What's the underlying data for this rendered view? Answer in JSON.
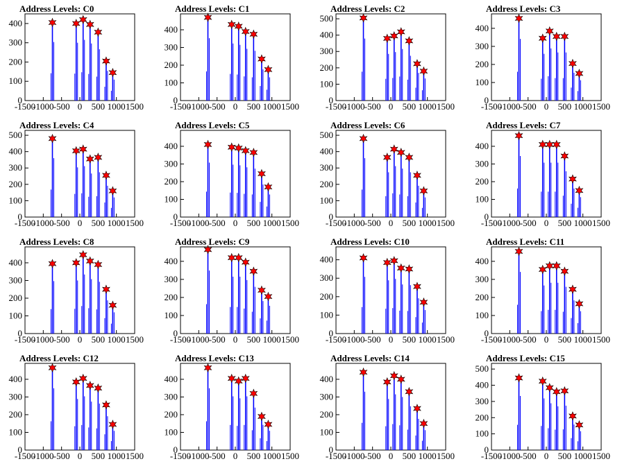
{
  "chart_data": [
    {
      "type": "bar",
      "title": "Address Levels: C0",
      "xlim": [
        -1500,
        1500
      ],
      "yticks": [
        0,
        100,
        200,
        300,
        400
      ],
      "xticks": [
        -1500,
        -1000,
        -500,
        0,
        500,
        1000,
        1500
      ],
      "ylim": [
        0,
        450
      ],
      "peaks": [
        {
          "x": -750,
          "y": 405
        },
        {
          "x": -100,
          "y": 400
        },
        {
          "x": 90,
          "y": 420
        },
        {
          "x": 280,
          "y": 395
        },
        {
          "x": 500,
          "y": 355
        },
        {
          "x": 720,
          "y": 205
        },
        {
          "x": 900,
          "y": 145
        }
      ]
    },
    {
      "type": "bar",
      "title": "Address Levels: C1",
      "xlim": [
        -1500,
        1500
      ],
      "yticks": [
        0,
        100,
        200,
        300,
        400
      ],
      "xticks": [
        -1500,
        -1000,
        -500,
        0,
        500,
        1000,
        1500
      ],
      "ylim": [
        0,
        490
      ],
      "peaks": [
        {
          "x": -750,
          "y": 470
        },
        {
          "x": -100,
          "y": 430
        },
        {
          "x": 90,
          "y": 420
        },
        {
          "x": 280,
          "y": 390
        },
        {
          "x": 500,
          "y": 375
        },
        {
          "x": 720,
          "y": 235
        },
        {
          "x": 900,
          "y": 175
        }
      ]
    },
    {
      "type": "bar",
      "title": "Address Levels: C2",
      "xlim": [
        -1500,
        1500
      ],
      "yticks": [
        0,
        100,
        200,
        300,
        400,
        500
      ],
      "xticks": [
        -1500,
        -1000,
        -500,
        0,
        500,
        1000,
        1500
      ],
      "ylim": [
        0,
        530
      ],
      "peaks": [
        {
          "x": -750,
          "y": 505
        },
        {
          "x": -100,
          "y": 380
        },
        {
          "x": 90,
          "y": 395
        },
        {
          "x": 280,
          "y": 420
        },
        {
          "x": 500,
          "y": 365
        },
        {
          "x": 720,
          "y": 225
        },
        {
          "x": 900,
          "y": 180
        }
      ]
    },
    {
      "type": "bar",
      "title": "Address Levels: C3",
      "xlim": [
        -1500,
        1500
      ],
      "yticks": [
        0,
        100,
        200,
        300,
        400
      ],
      "xticks": [
        -1500,
        -1000,
        -500,
        0,
        500,
        1000,
        1500
      ],
      "ylim": [
        0,
        480
      ],
      "peaks": [
        {
          "x": -750,
          "y": 455
        },
        {
          "x": -100,
          "y": 345
        },
        {
          "x": 90,
          "y": 385
        },
        {
          "x": 280,
          "y": 355
        },
        {
          "x": 500,
          "y": 355
        },
        {
          "x": 720,
          "y": 205
        },
        {
          "x": 900,
          "y": 150
        }
      ]
    },
    {
      "type": "bar",
      "title": "Address Levels: C4",
      "xlim": [
        -1500,
        1500
      ],
      "yticks": [
        0,
        100,
        200,
        300,
        400,
        500
      ],
      "xticks": [
        -1500,
        -1000,
        -500,
        0,
        500,
        1000,
        1500
      ],
      "ylim": [
        0,
        530
      ],
      "peaks": [
        {
          "x": -750,
          "y": 480
        },
        {
          "x": -100,
          "y": 405
        },
        {
          "x": 90,
          "y": 415
        },
        {
          "x": 280,
          "y": 355
        },
        {
          "x": 500,
          "y": 365
        },
        {
          "x": 720,
          "y": 255
        },
        {
          "x": 900,
          "y": 160
        }
      ]
    },
    {
      "type": "bar",
      "title": "Address Levels: C5",
      "xlim": [
        -1500,
        1500
      ],
      "yticks": [
        0,
        100,
        200,
        300,
        400
      ],
      "xticks": [
        -1500,
        -1000,
        -500,
        0,
        500,
        1000,
        1500
      ],
      "ylim": [
        0,
        490
      ],
      "peaks": [
        {
          "x": -750,
          "y": 410
        },
        {
          "x": -100,
          "y": 395
        },
        {
          "x": 90,
          "y": 390
        },
        {
          "x": 280,
          "y": 375
        },
        {
          "x": 500,
          "y": 365
        },
        {
          "x": 720,
          "y": 245
        },
        {
          "x": 900,
          "y": 170
        }
      ]
    },
    {
      "type": "bar",
      "title": "Address Levels: C6",
      "xlim": [
        -1500,
        1500
      ],
      "yticks": [
        0,
        100,
        200,
        300,
        400,
        500
      ],
      "xticks": [
        -1500,
        -1000,
        -500,
        0,
        500,
        1000,
        1500
      ],
      "ylim": [
        0,
        530
      ],
      "peaks": [
        {
          "x": -750,
          "y": 480
        },
        {
          "x": -100,
          "y": 365
        },
        {
          "x": 90,
          "y": 415
        },
        {
          "x": 280,
          "y": 395
        },
        {
          "x": 500,
          "y": 365
        },
        {
          "x": 720,
          "y": 255
        },
        {
          "x": 900,
          "y": 160
        }
      ]
    },
    {
      "type": "bar",
      "title": "Address Levels: C7",
      "xlim": [
        -1500,
        1500
      ],
      "yticks": [
        0,
        100,
        200,
        300,
        400
      ],
      "xticks": [
        -1500,
        -1000,
        -500,
        0,
        500,
        1000,
        1500
      ],
      "ylim": [
        0,
        490
      ],
      "peaks": [
        {
          "x": -750,
          "y": 460
        },
        {
          "x": -100,
          "y": 410
        },
        {
          "x": 90,
          "y": 410
        },
        {
          "x": 280,
          "y": 410
        },
        {
          "x": 500,
          "y": 345
        },
        {
          "x": 720,
          "y": 215
        },
        {
          "x": 900,
          "y": 150
        }
      ]
    },
    {
      "type": "bar",
      "title": "Address Levels: C8",
      "xlim": [
        -1500,
        1500
      ],
      "yticks": [
        0,
        100,
        200,
        300,
        400
      ],
      "xticks": [
        -1500,
        -1000,
        -500,
        0,
        500,
        1000,
        1500
      ],
      "ylim": [
        0,
        490
      ],
      "peaks": [
        {
          "x": -750,
          "y": 395
        },
        {
          "x": -100,
          "y": 400
        },
        {
          "x": 90,
          "y": 445
        },
        {
          "x": 280,
          "y": 410
        },
        {
          "x": 500,
          "y": 390
        },
        {
          "x": 720,
          "y": 250
        },
        {
          "x": 900,
          "y": 160
        }
      ]
    },
    {
      "type": "bar",
      "title": "Address Levels: C9",
      "xlim": [
        -1500,
        1500
      ],
      "yticks": [
        0,
        100,
        200,
        300,
        400
      ],
      "xticks": [
        -1500,
        -1000,
        -500,
        0,
        500,
        1000,
        1500
      ],
      "ylim": [
        0,
        480
      ],
      "peaks": [
        {
          "x": -750,
          "y": 465
        },
        {
          "x": -100,
          "y": 420
        },
        {
          "x": 90,
          "y": 420
        },
        {
          "x": 280,
          "y": 395
        },
        {
          "x": 500,
          "y": 345
        },
        {
          "x": 720,
          "y": 240
        },
        {
          "x": 900,
          "y": 205
        }
      ]
    },
    {
      "type": "bar",
      "title": "Address Levels: C10",
      "xlim": [
        -1500,
        1500
      ],
      "yticks": [
        0,
        100,
        200,
        300,
        400
      ],
      "xticks": [
        -1500,
        -1000,
        -500,
        0,
        500,
        1000,
        1500
      ],
      "ylim": [
        0,
        470
      ],
      "peaks": [
        {
          "x": -750,
          "y": 410
        },
        {
          "x": -100,
          "y": 385
        },
        {
          "x": 90,
          "y": 395
        },
        {
          "x": 280,
          "y": 355
        },
        {
          "x": 500,
          "y": 350
        },
        {
          "x": 720,
          "y": 255
        },
        {
          "x": 900,
          "y": 170
        }
      ]
    },
    {
      "type": "bar",
      "title": "Address Levels: C11",
      "xlim": [
        -1500,
        1500
      ],
      "yticks": [
        0,
        100,
        200,
        300,
        400
      ],
      "xticks": [
        -1500,
        -1000,
        -500,
        0,
        500,
        1000,
        1500
      ],
      "ylim": [
        0,
        480
      ],
      "peaks": [
        {
          "x": -750,
          "y": 455
        },
        {
          "x": -100,
          "y": 355
        },
        {
          "x": 90,
          "y": 375
        },
        {
          "x": 280,
          "y": 375
        },
        {
          "x": 500,
          "y": 345
        },
        {
          "x": 720,
          "y": 245
        },
        {
          "x": 900,
          "y": 165
        }
      ]
    },
    {
      "type": "bar",
      "title": "Address Levels: C12",
      "xlim": [
        -1500,
        1500
      ],
      "yticks": [
        0,
        100,
        200,
        300,
        400
      ],
      "xticks": [
        -1500,
        -1000,
        -500,
        0,
        500,
        1000,
        1500
      ],
      "ylim": [
        0,
        490
      ],
      "peaks": [
        {
          "x": -750,
          "y": 465
        },
        {
          "x": -100,
          "y": 385
        },
        {
          "x": 90,
          "y": 405
        },
        {
          "x": 280,
          "y": 365
        },
        {
          "x": 500,
          "y": 350
        },
        {
          "x": 720,
          "y": 255
        },
        {
          "x": 900,
          "y": 145
        }
      ]
    },
    {
      "type": "bar",
      "title": "Address Levels: C13",
      "xlim": [
        -1500,
        1500
      ],
      "yticks": [
        0,
        100,
        200,
        300,
        400
      ],
      "xticks": [
        -1500,
        -1000,
        -500,
        0,
        500,
        1000,
        1500
      ],
      "ylim": [
        0,
        490
      ],
      "peaks": [
        {
          "x": -750,
          "y": 465
        },
        {
          "x": -100,
          "y": 405
        },
        {
          "x": 90,
          "y": 390
        },
        {
          "x": 280,
          "y": 405
        },
        {
          "x": 500,
          "y": 320
        },
        {
          "x": 720,
          "y": 190
        },
        {
          "x": 900,
          "y": 145
        }
      ]
    },
    {
      "type": "bar",
      "title": "Address Levels: C14",
      "xlim": [
        -1500,
        1500
      ],
      "yticks": [
        0,
        100,
        200,
        300,
        400
      ],
      "xticks": [
        -1500,
        -1000,
        -500,
        0,
        500,
        1000,
        1500
      ],
      "ylim": [
        0,
        490
      ],
      "peaks": [
        {
          "x": -750,
          "y": 440
        },
        {
          "x": -100,
          "y": 385
        },
        {
          "x": 90,
          "y": 420
        },
        {
          "x": 280,
          "y": 400
        },
        {
          "x": 500,
          "y": 330
        },
        {
          "x": 720,
          "y": 235
        },
        {
          "x": 900,
          "y": 150
        }
      ]
    },
    {
      "type": "bar",
      "title": "Address Levels: C15",
      "xlim": [
        -1500,
        1500
      ],
      "yticks": [
        0,
        100,
        200,
        300,
        400,
        500
      ],
      "xticks": [
        -1500,
        -1000,
        -500,
        0,
        500,
        1000,
        1500
      ],
      "ylim": [
        0,
        535
      ],
      "peaks": [
        {
          "x": -750,
          "y": 445
        },
        {
          "x": -100,
          "y": 425
        },
        {
          "x": 90,
          "y": 385
        },
        {
          "x": 280,
          "y": 360
        },
        {
          "x": 500,
          "y": 365
        },
        {
          "x": 720,
          "y": 210
        },
        {
          "x": 900,
          "y": 155
        }
      ]
    }
  ]
}
